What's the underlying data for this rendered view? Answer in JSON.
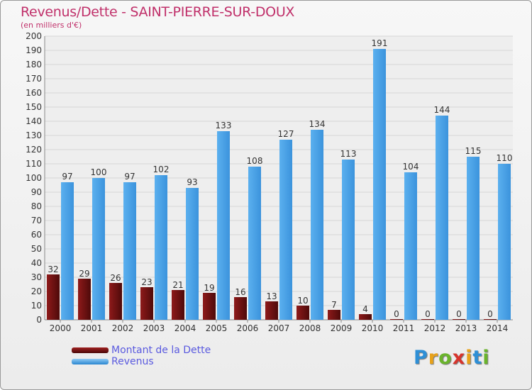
{
  "title": "Revenus/Dette - SAINT-PIERRE-SUR-DOUX",
  "subtitle": "(en milliers d'€)",
  "logo": {
    "letters": [
      "P",
      "r",
      "o",
      "x",
      "i",
      "t",
      "i"
    ],
    "colors": [
      "#2e8fd6",
      "#e8a21a",
      "#6ab42c",
      "#d7342c",
      "#e8a21a",
      "#2e8fd6",
      "#6ab42c"
    ]
  },
  "colors": {
    "dette": "#6e1010",
    "revenus": "#4aa3e8",
    "axis_text": "#333333",
    "grid": "#d6d6d6"
  },
  "chart_data": {
    "type": "bar",
    "categories": [
      "2000",
      "2001",
      "2002",
      "2003",
      "2004",
      "2005",
      "2006",
      "2007",
      "2008",
      "2009",
      "2010",
      "2011",
      "2012",
      "2013",
      "2014"
    ],
    "series": [
      {
        "name": "Montant de la Dette",
        "values": [
          32,
          29,
          26,
          23,
          21,
          19,
          16,
          13,
          10,
          7,
          4,
          0,
          0,
          0,
          0
        ]
      },
      {
        "name": "Revenus",
        "values": [
          97,
          100,
          97,
          102,
          93,
          133,
          108,
          127,
          134,
          113,
          191,
          104,
          144,
          115,
          110
        ]
      }
    ],
    "ylim": [
      0,
      200
    ],
    "ytick_step": 10,
    "grid": true,
    "legend": "bottom-left"
  }
}
